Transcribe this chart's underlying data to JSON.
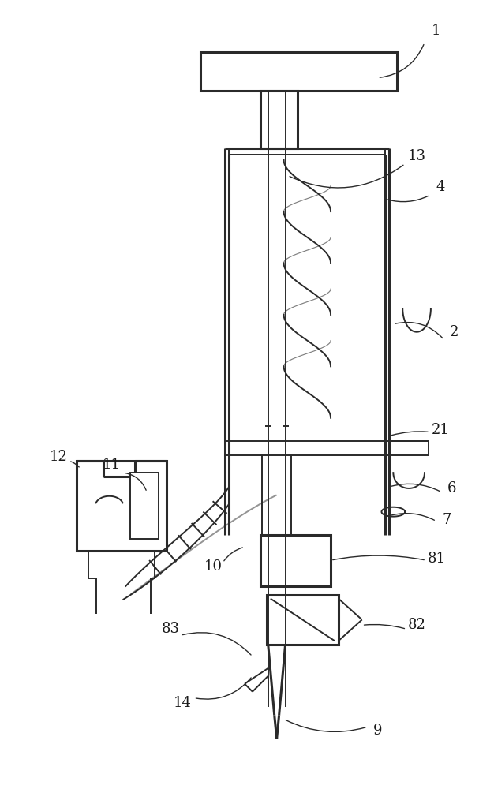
{
  "fig_width": 6.26,
  "fig_height": 10.0,
  "dpi": 100,
  "bg_color": "#ffffff",
  "line_color": "#2a2a2a",
  "line_width": 1.4
}
